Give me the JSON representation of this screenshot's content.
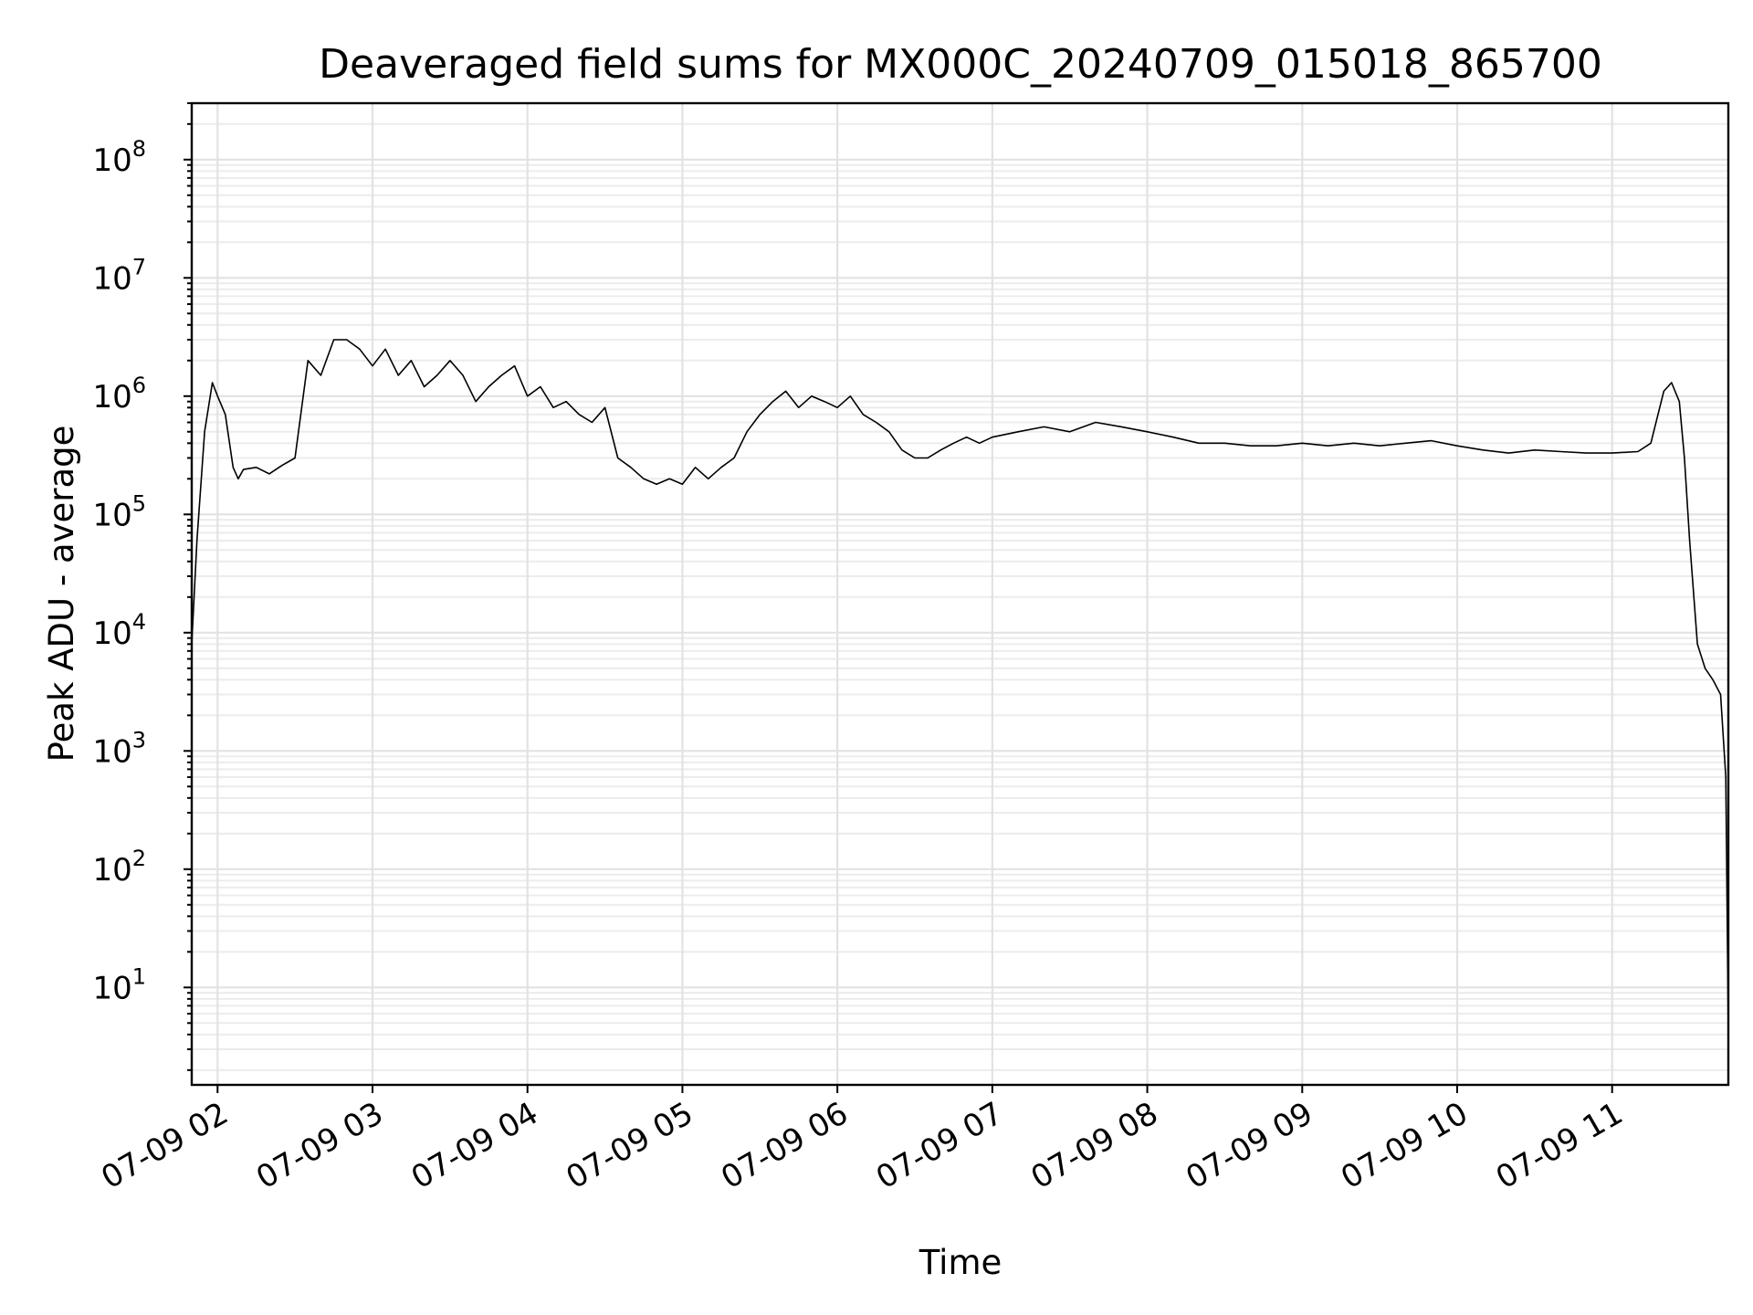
{
  "chart_data": {
    "type": "line",
    "title": "Deaveraged field sums for MX000C_20240709_015018_865700",
    "xlabel": "Time",
    "ylabel": "Peak ADU - average",
    "yscale": "log",
    "ylim": [
      1.5,
      300000000
    ],
    "xlim": [
      "2024-07-09 01:50",
      "2024-07-09 11:45"
    ],
    "grid": true,
    "x_ticks": [
      {
        "label": "07-09 02",
        "t": "2024-07-09 02:00"
      },
      {
        "label": "07-09 03",
        "t": "2024-07-09 03:00"
      },
      {
        "label": "07-09 04",
        "t": "2024-07-09 04:00"
      },
      {
        "label": "07-09 05",
        "t": "2024-07-09 05:00"
      },
      {
        "label": "07-09 06",
        "t": "2024-07-09 06:00"
      },
      {
        "label": "07-09 07",
        "t": "2024-07-09 07:00"
      },
      {
        "label": "07-09 08",
        "t": "2024-07-09 08:00"
      },
      {
        "label": "07-09 09",
        "t": "2024-07-09 09:00"
      },
      {
        "label": "07-09 10",
        "t": "2024-07-09 10:00"
      },
      {
        "label": "07-09 11",
        "t": "2024-07-09 11:00"
      }
    ],
    "y_ticks": [
      {
        "value": 10,
        "base": "10",
        "exp": "1"
      },
      {
        "value": 100,
        "base": "10",
        "exp": "2"
      },
      {
        "value": 1000,
        "base": "10",
        "exp": "3"
      },
      {
        "value": 10000,
        "base": "10",
        "exp": "4"
      },
      {
        "value": 100000,
        "base": "10",
        "exp": "5"
      },
      {
        "value": 1000000,
        "base": "10",
        "exp": "6"
      },
      {
        "value": 10000000,
        "base": "10",
        "exp": "7"
      },
      {
        "value": 100000000,
        "base": "10",
        "exp": "8"
      }
    ],
    "series": [
      {
        "color": "#000000",
        "x": [
          "2024-07-09 01:50",
          "2024-07-09 01:52",
          "2024-07-09 01:55",
          "2024-07-09 01:58",
          "2024-07-09 02:00",
          "2024-07-09 02:03",
          "2024-07-09 02:06",
          "2024-07-09 02:08",
          "2024-07-09 02:10",
          "2024-07-09 02:15",
          "2024-07-09 02:20",
          "2024-07-09 02:25",
          "2024-07-09 02:30",
          "2024-07-09 02:35",
          "2024-07-09 02:40",
          "2024-07-09 02:45",
          "2024-07-09 02:50",
          "2024-07-09 02:55",
          "2024-07-09 03:00",
          "2024-07-09 03:05",
          "2024-07-09 03:10",
          "2024-07-09 03:15",
          "2024-07-09 03:20",
          "2024-07-09 03:25",
          "2024-07-09 03:30",
          "2024-07-09 03:35",
          "2024-07-09 03:40",
          "2024-07-09 03:45",
          "2024-07-09 03:50",
          "2024-07-09 03:55",
          "2024-07-09 04:00",
          "2024-07-09 04:05",
          "2024-07-09 04:10",
          "2024-07-09 04:15",
          "2024-07-09 04:20",
          "2024-07-09 04:25",
          "2024-07-09 04:30",
          "2024-07-09 04:35",
          "2024-07-09 04:40",
          "2024-07-09 04:45",
          "2024-07-09 04:50",
          "2024-07-09 04:55",
          "2024-07-09 05:00",
          "2024-07-09 05:05",
          "2024-07-09 05:10",
          "2024-07-09 05:15",
          "2024-07-09 05:20",
          "2024-07-09 05:25",
          "2024-07-09 05:30",
          "2024-07-09 05:35",
          "2024-07-09 05:40",
          "2024-07-09 05:45",
          "2024-07-09 05:50",
          "2024-07-09 05:55",
          "2024-07-09 06:00",
          "2024-07-09 06:05",
          "2024-07-09 06:10",
          "2024-07-09 06:15",
          "2024-07-09 06:20",
          "2024-07-09 06:25",
          "2024-07-09 06:30",
          "2024-07-09 06:35",
          "2024-07-09 06:40",
          "2024-07-09 06:45",
          "2024-07-09 06:50",
          "2024-07-09 06:55",
          "2024-07-09 07:00",
          "2024-07-09 07:10",
          "2024-07-09 07:20",
          "2024-07-09 07:30",
          "2024-07-09 07:40",
          "2024-07-09 07:50",
          "2024-07-09 08:00",
          "2024-07-09 08:10",
          "2024-07-09 08:20",
          "2024-07-09 08:30",
          "2024-07-09 08:40",
          "2024-07-09 08:50",
          "2024-07-09 09:00",
          "2024-07-09 09:10",
          "2024-07-09 09:20",
          "2024-07-09 09:30",
          "2024-07-09 09:40",
          "2024-07-09 09:50",
          "2024-07-09 10:00",
          "2024-07-09 10:10",
          "2024-07-09 10:20",
          "2024-07-09 10:30",
          "2024-07-09 10:40",
          "2024-07-09 10:50",
          "2024-07-09 11:00",
          "2024-07-09 11:10",
          "2024-07-09 11:15",
          "2024-07-09 11:20",
          "2024-07-09 11:23",
          "2024-07-09 11:26",
          "2024-07-09 11:28",
          "2024-07-09 11:30",
          "2024-07-09 11:33",
          "2024-07-09 11:36",
          "2024-07-09 11:39",
          "2024-07-09 11:42",
          "2024-07-09 11:44",
          "2024-07-09 11:45"
        ],
        "y": [
          8000,
          60000,
          500000,
          1300000,
          1000000,
          700000,
          250000,
          200000,
          240000,
          250000,
          220000,
          260000,
          300000,
          2000000,
          1500000,
          3000000,
          3000000,
          2500000,
          1800000,
          2500000,
          1500000,
          2000000,
          1200000,
          1500000,
          2000000,
          1500000,
          900000,
          1200000,
          1500000,
          1800000,
          1000000,
          1200000,
          800000,
          900000,
          700000,
          600000,
          800000,
          300000,
          250000,
          200000,
          180000,
          200000,
          180000,
          250000,
          200000,
          250000,
          300000,
          500000,
          700000,
          900000,
          1100000,
          800000,
          1000000,
          900000,
          800000,
          1000000,
          700000,
          600000,
          500000,
          350000,
          300000,
          300000,
          350000,
          400000,
          450000,
          400000,
          450000,
          500000,
          550000,
          500000,
          600000,
          550000,
          500000,
          450000,
          400000,
          400000,
          380000,
          380000,
          400000,
          380000,
          400000,
          380000,
          400000,
          420000,
          380000,
          350000,
          330000,
          350000,
          340000,
          330000,
          330000,
          340000,
          400000,
          1100000,
          1300000,
          900000,
          300000,
          60000,
          8000,
          5000,
          4000,
          3000,
          600,
          4
        ]
      }
    ]
  }
}
